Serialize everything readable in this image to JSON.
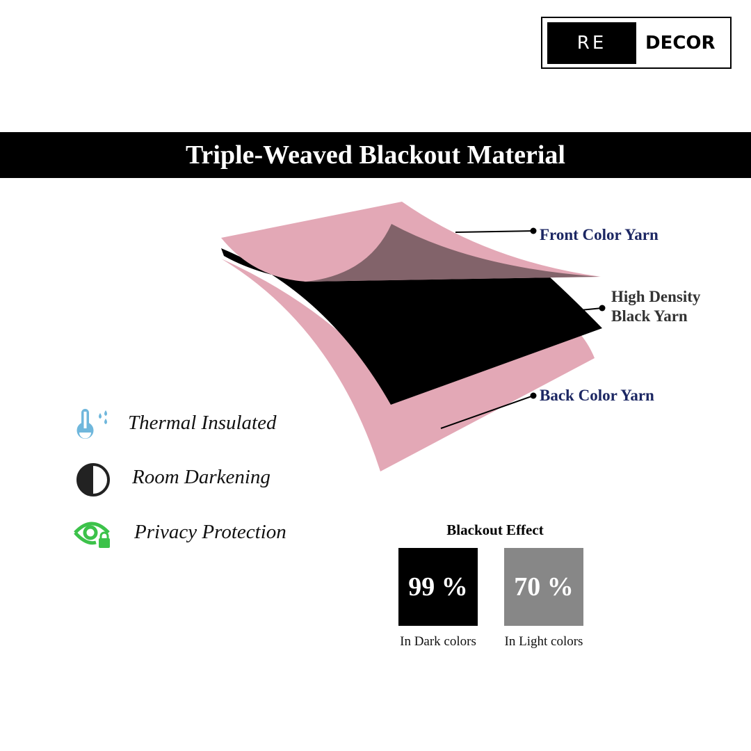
{
  "logo": {
    "left": "RE",
    "right": "DECOR"
  },
  "title": "Triple-Weaved Blackout Material",
  "layers": {
    "front": "Front  Color Yarn",
    "middle_line1": "High Density",
    "middle_line2": "Black Yarn",
    "back": "Back Color Yarn"
  },
  "colors": {
    "pink": "#e3a8b6",
    "mauve": "#82636a",
    "label_navy": "#1c2763",
    "label_gray": "#333333",
    "thermal": "#6fb7dc",
    "privacy": "#3cc24a"
  },
  "features": [
    {
      "icon": "thermometer-drops-icon",
      "label": "Thermal Insulated"
    },
    {
      "icon": "half-circle-contrast-icon",
      "label": "Room Darkening"
    },
    {
      "icon": "eye-lock-icon",
      "label": "Privacy Protection"
    }
  ],
  "blackout": {
    "title": "Blackout Effect",
    "items": [
      {
        "value": "99 %",
        "caption": "In Dark colors",
        "color": "#000000"
      },
      {
        "value": "70 %",
        "caption": "In Light colors",
        "color": "#878787"
      }
    ]
  }
}
